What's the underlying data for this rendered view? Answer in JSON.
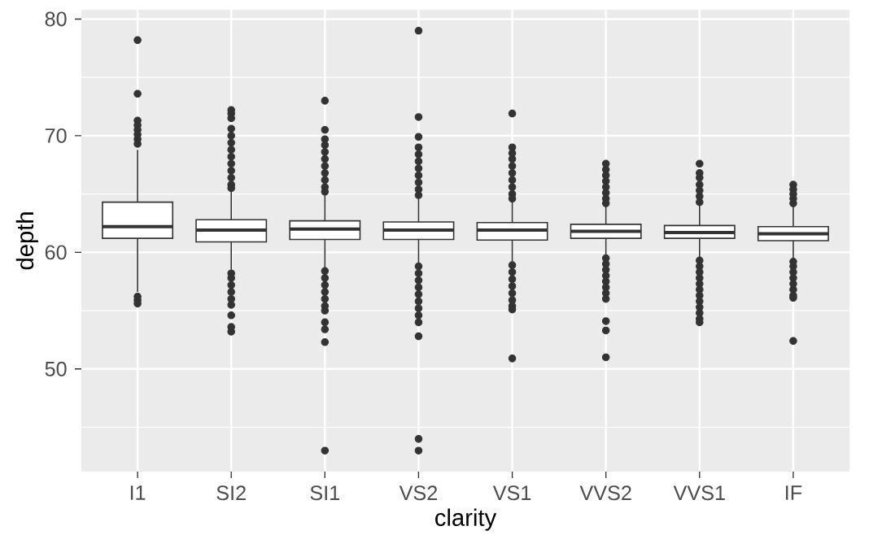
{
  "chart_data": {
    "type": "box",
    "xlabel": "clarity",
    "ylabel": "depth",
    "categories": [
      "I1",
      "SI2",
      "SI1",
      "VS2",
      "VS1",
      "VVS2",
      "VVS1",
      "IF"
    ],
    "boxes": [
      {
        "low": 56.6,
        "q1": 61.2,
        "median": 62.2,
        "q3": 64.3,
        "high": 68.8,
        "outliers": [
          78.2,
          73.6,
          71.3,
          70.9,
          70.5,
          70.1,
          69.7,
          69.3,
          56.2,
          55.9,
          55.6
        ]
      },
      {
        "low": 58.5,
        "q1": 60.9,
        "median": 61.9,
        "q3": 62.8,
        "high": 65.3,
        "outliers": [
          72.2,
          71.9,
          71.5,
          70.6,
          70,
          69.4,
          68.8,
          68.2,
          67.6,
          67,
          66.4,
          65.8,
          65.5,
          58.2,
          57.8,
          57.2,
          56.6,
          56,
          55.5,
          54.6,
          53.6,
          53.2
        ]
      },
      {
        "low": 58.7,
        "q1": 61.1,
        "median": 62,
        "q3": 62.7,
        "high": 65,
        "outliers": [
          73,
          70.5,
          69.7,
          69.2,
          68.6,
          68,
          67.4,
          66.8,
          66.2,
          65.6,
          65.2,
          58.4,
          57.8,
          57.2,
          56.6,
          56,
          55.4,
          55,
          54,
          53.4,
          52.3,
          43
        ]
      },
      {
        "low": 59,
        "q1": 61.1,
        "median": 61.9,
        "q3": 62.6,
        "high": 64.6,
        "outliers": [
          79,
          71.6,
          69.9,
          69,
          68.4,
          67.8,
          67.2,
          66.6,
          66,
          65.4,
          64.9,
          58.8,
          58.2,
          57.6,
          57,
          56.4,
          55.8,
          55.2,
          54.6,
          54,
          52.8,
          44,
          43
        ]
      },
      {
        "low": 59.2,
        "q1": 61.05,
        "median": 61.9,
        "q3": 62.55,
        "high": 64.4,
        "outliers": [
          71.9,
          69,
          68.5,
          68,
          67.4,
          66.8,
          66.2,
          65.6,
          65,
          64.6,
          58.9,
          58.3,
          57.7,
          57.1,
          56.5,
          55.9,
          55.4,
          55.1,
          50.9
        ]
      },
      {
        "low": 59.8,
        "q1": 61.2,
        "median": 61.8,
        "q3": 62.4,
        "high": 64,
        "outliers": [
          67.6,
          67.1,
          66.6,
          66.1,
          65.6,
          65.1,
          64.6,
          64.2,
          59.5,
          59,
          58.5,
          58,
          57.5,
          57,
          56.5,
          56,
          54.1,
          53.3,
          51
        ]
      },
      {
        "low": 59.6,
        "q1": 61.2,
        "median": 61.7,
        "q3": 62.3,
        "high": 64,
        "outliers": [
          67.6,
          66.8,
          66.4,
          65.8,
          65.3,
          64.8,
          64.3,
          59.3,
          58.8,
          58.3,
          57.8,
          57.3,
          56.8,
          56.3,
          55.8,
          55.3,
          54.8,
          54.3,
          54
        ]
      },
      {
        "low": 59.5,
        "q1": 61,
        "median": 61.6,
        "q3": 62.2,
        "high": 64,
        "outliers": [
          65.8,
          65.4,
          65,
          64.6,
          64.2,
          59.2,
          58.8,
          58.3,
          57.8,
          57.3,
          56.8,
          56.3,
          56.1,
          52.4
        ]
      }
    ],
    "ylim": [
      41.2,
      80.8
    ],
    "yticks": [
      50,
      60,
      70,
      80
    ],
    "grid": true
  }
}
